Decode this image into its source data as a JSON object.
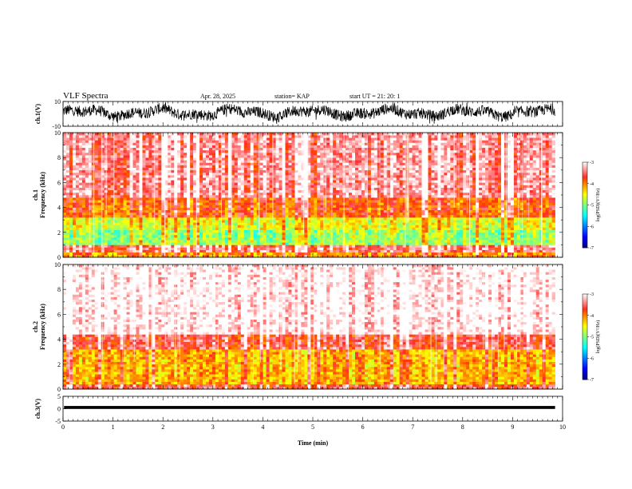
{
  "header": {
    "title": "VLF Spectra",
    "date": "Apr. 28, 2025",
    "station": "station= KAP",
    "start": "start UT =  21: 20: 1"
  },
  "chart_data": [
    {
      "type": "line",
      "panel": "ch1-waveform",
      "ylabel": "ch.1(V)",
      "ylim": [
        -10,
        10
      ],
      "yticks": [
        10,
        -10
      ],
      "xlim": [
        0,
        10
      ],
      "data_end_min": 9.85,
      "series": [
        {
          "color": "#000000",
          "amplitude_range_V": [
            -8,
            9
          ],
          "mean_V": 1
        }
      ]
    },
    {
      "type": "heatmap",
      "panel": "ch1-spectrogram",
      "ylabel_line1": "ch.1",
      "ylabel_line2": "Frequency (kHz)",
      "ylim": [
        0,
        10
      ],
      "yticks": [
        0,
        2,
        4,
        6,
        8,
        10
      ],
      "xlim": [
        0,
        10
      ],
      "data_end_min": 9.85,
      "colorbar": {
        "label": "log(PSD)(V²/Hz)",
        "range": [
          -7,
          -3
        ],
        "ticks": [
          -3,
          -4,
          -5,
          -6,
          -7
        ]
      },
      "bands_log_psd": [
        {
          "f": [
            0,
            0.5
          ],
          "value": -4.1
        },
        {
          "f": [
            0.5,
            0.9
          ],
          "value": -3.5
        },
        {
          "f": [
            0.9,
            2.3
          ],
          "value": -4.9
        },
        {
          "f": [
            2.3,
            3.3
          ],
          "value": -4.6
        },
        {
          "f": [
            3.3,
            4.8
          ],
          "value": -3.9
        },
        {
          "f": [
            4.8,
            10
          ],
          "value": -3.4
        }
      ]
    },
    {
      "type": "heatmap",
      "panel": "ch2-spectrogram",
      "ylabel_line1": "ch.2",
      "ylabel_line2": "Frequency (kHz)",
      "ylim": [
        0,
        10
      ],
      "yticks": [
        0,
        2,
        4,
        6,
        8,
        10
      ],
      "xlim": [
        0,
        10
      ],
      "data_end_min": 9.85,
      "colorbar": {
        "label": "log(PSD)(V²/Hz)",
        "range": [
          -7,
          -3
        ],
        "ticks": [
          -3,
          -4,
          -5,
          -6,
          -7
        ]
      },
      "bands_log_psd": [
        {
          "f": [
            0,
            0.5
          ],
          "value": -3.6
        },
        {
          "f": [
            0.5,
            3.3
          ],
          "value": -4.2
        },
        {
          "f": [
            3.3,
            4.5
          ],
          "value": -3.6
        },
        {
          "f": [
            4.5,
            10
          ],
          "value": -3.0
        }
      ]
    },
    {
      "type": "line",
      "panel": "ch3-waveform",
      "ylabel": "ch.3(V)",
      "ylim": [
        -5,
        5
      ],
      "yticks": [
        5,
        0,
        -5
      ],
      "xlim": [
        0,
        10
      ],
      "xlabel": "Time (min)",
      "xticks": [
        0,
        1,
        2,
        3,
        4,
        5,
        6,
        7,
        8,
        9,
        10
      ],
      "data_end_min": 9.85,
      "series": [
        {
          "color": "#000000",
          "level_V": 0.5,
          "amplitude_V": 0.6
        }
      ]
    }
  ]
}
